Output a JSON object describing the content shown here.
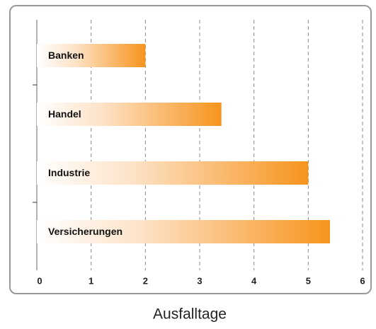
{
  "chart_data": {
    "type": "hbar",
    "x_label": "Ausfalltage",
    "categories": [
      "Banken",
      "Handel",
      "Industrie",
      "Versicherungen"
    ],
    "values": [
      2.0,
      3.4,
      5.0,
      5.4
    ],
    "color": "#f7941d",
    "xlim": [
      0,
      6
    ],
    "xticks": [
      0,
      1,
      2,
      3,
      4,
      5,
      6
    ],
    "grid": true
  }
}
